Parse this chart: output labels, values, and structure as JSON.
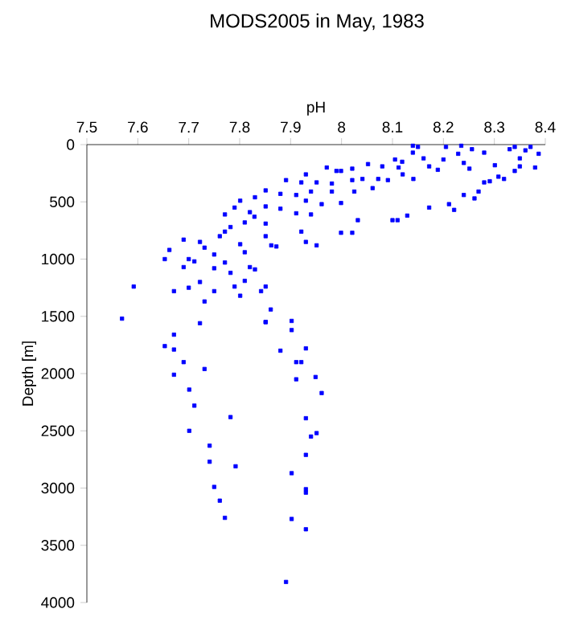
{
  "chart_data": {
    "type": "scatter",
    "title": "MODS2005 in May, 1983",
    "xlabel": "pH",
    "ylabel": "Depth [m]",
    "xlim": [
      7.5,
      8.4
    ],
    "xticks": [
      7.5,
      7.6,
      7.7,
      7.8,
      7.9,
      8,
      8.1,
      8.2,
      8.3,
      8.4
    ],
    "ylim": [
      4000,
      0
    ],
    "yticks": [
      0,
      500,
      1000,
      1500,
      2000,
      2500,
      3000,
      3500,
      4000
    ],
    "marker": "square",
    "series": [
      {
        "color": "#0000ff",
        "x": [
          7.671,
          7.653,
          7.671,
          7.69,
          7.731,
          7.671,
          7.701,
          7.711,
          7.782,
          7.701,
          7.741,
          7.741,
          7.792,
          7.75,
          7.761,
          7.771,
          7.851,
          7.902,
          7.902,
          7.88,
          7.93,
          7.911,
          7.921,
          7.911,
          7.949,
          7.961,
          7.93,
          7.94,
          7.951,
          7.93,
          7.902,
          7.93,
          7.93,
          7.902,
          7.93,
          7.891,
          7.592,
          7.569,
          7.653,
          7.662,
          7.69,
          7.7,
          7.711,
          7.69,
          7.722,
          7.731,
          7.75,
          7.75,
          7.722,
          7.671,
          7.7,
          7.731,
          7.722,
          7.75,
          7.771,
          7.782,
          7.79,
          7.801,
          7.81,
          7.82,
          7.83,
          7.851,
          7.842,
          7.861,
          7.851,
          7.771,
          7.761,
          7.771,
          7.782,
          7.79,
          7.801,
          7.82,
          7.81,
          7.801,
          7.81,
          7.829,
          7.83,
          7.851,
          7.851,
          7.851,
          7.851,
          7.862,
          7.872,
          7.88,
          7.88,
          7.891,
          7.911,
          7.911,
          7.921,
          7.93,
          7.951,
          7.94,
          7.93,
          7.94,
          7.921,
          7.93,
          7.951,
          7.961,
          7.971,
          7.981,
          7.981,
          7.99,
          7.999,
          7.999,
          7.999,
          8.021,
          8.021,
          8.021,
          8.032,
          8.025,
          8.041,
          8.052,
          8.061,
          8.072,
          8.08,
          8.091,
          8.1,
          8.11,
          8.12,
          8.129,
          8.141,
          8.105,
          8.119,
          8.14,
          8.15,
          8.161,
          8.172,
          8.172,
          8.189,
          8.2,
          8.211,
          8.221,
          8.205,
          8.229,
          8.24,
          8.24,
          8.251,
          8.261,
          8.269,
          8.28,
          8.28,
          8.291,
          8.301,
          8.308,
          8.319,
          8.33,
          8.34,
          8.35,
          8.361,
          8.371,
          8.38,
          8.387,
          8.14,
          8.235,
          8.256,
          8.34,
          8.35,
          8.112
        ],
        "values": [
          1660,
          1760,
          1790,
          1900,
          1960,
          2010,
          2140,
          2280,
          2380,
          2500,
          2630,
          2770,
          2810,
          2990,
          3110,
          3260,
          1550,
          1540,
          1620,
          1800,
          1780,
          1900,
          1900,
          2050,
          2030,
          2170,
          2390,
          2550,
          2520,
          2710,
          2870,
          3010,
          3040,
          3270,
          3360,
          3820,
          1240,
          1520,
          1000,
          920,
          830,
          1000,
          1020,
          1070,
          850,
          900,
          960,
          1080,
          1200,
          1280,
          1250,
          1370,
          1560,
          1280,
          1030,
          1120,
          1240,
          1320,
          1190,
          1070,
          1090,
          1240,
          1280,
          1440,
          1550,
          610,
          800,
          760,
          720,
          550,
          490,
          590,
          680,
          870,
          940,
          630,
          460,
          400,
          540,
          690,
          800,
          880,
          890,
          430,
          560,
          310,
          440,
          600,
          760,
          850,
          880,
          610,
          490,
          410,
          330,
          260,
          330,
          520,
          200,
          410,
          340,
          230,
          230,
          510,
          770,
          770,
          310,
          210,
          660,
          410,
          300,
          170,
          380,
          300,
          190,
          310,
          660,
          660,
          260,
          620,
          300,
          130,
          150,
          70,
          20,
          120,
          190,
          550,
          220,
          130,
          520,
          570,
          20,
          80,
          160,
          440,
          210,
          470,
          410,
          70,
          330,
          320,
          180,
          280,
          300,
          40,
          230,
          120,
          50,
          20,
          200,
          80,
          10,
          10,
          40,
          20,
          190,
          200
        ]
      }
    ]
  }
}
